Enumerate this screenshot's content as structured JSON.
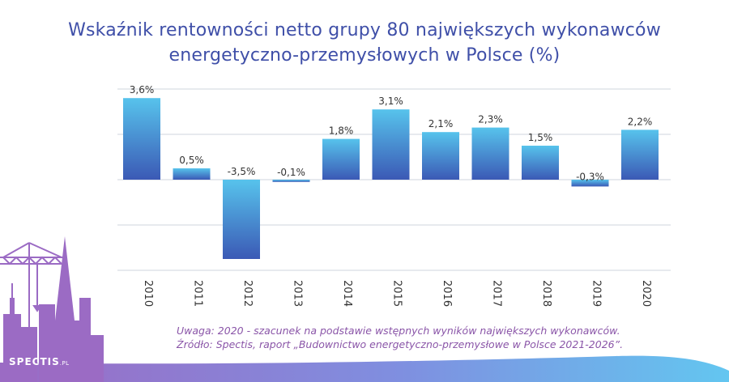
{
  "title": {
    "line1": "Wskaźnik rentowności netto grupy 80 największych wykonawców",
    "line2": "energetyczno-przemysłowych w Polsce (%)"
  },
  "chart_data": {
    "type": "bar",
    "categories": [
      "2010",
      "2011",
      "2012",
      "2013",
      "2014",
      "2015",
      "2016",
      "2017",
      "2018",
      "2019",
      "2020"
    ],
    "values": [
      3.6,
      0.5,
      -3.5,
      -0.1,
      1.8,
      3.1,
      2.1,
      2.3,
      1.5,
      -0.3,
      2.2
    ],
    "labels": [
      "3,6%",
      "0,5%",
      "-3,5%",
      "-0,1%",
      "1,8%",
      "3,1%",
      "2,1%",
      "2,3%",
      "1,5%",
      "-0,3%",
      "2,2%"
    ],
    "title": "Wskaźnik rentowności netto grupy 80 największych wykonawców energetyczno-przemysłowych w Polsce (%)",
    "xlabel": "",
    "ylabel": "",
    "ylim": [
      -4,
      4
    ],
    "grid": true,
    "colors": {
      "bar_top": "#57c3ec",
      "bar_bottom": "#3b59b5",
      "grid": "#cfd6dc",
      "title": "#3f4fa8",
      "label": "#333333"
    }
  },
  "footnote": {
    "line1": "Uwaga: 2020 - szacunek na podstawie wstępnych wyników największych wykonawców.",
    "line2": "Źródło: Spectis, raport „Budownictwo energetyczno-przemysłowe w Polsce 2021-2026”."
  },
  "brand": {
    "name": "SPECTIS",
    "suffix": ".PL"
  }
}
